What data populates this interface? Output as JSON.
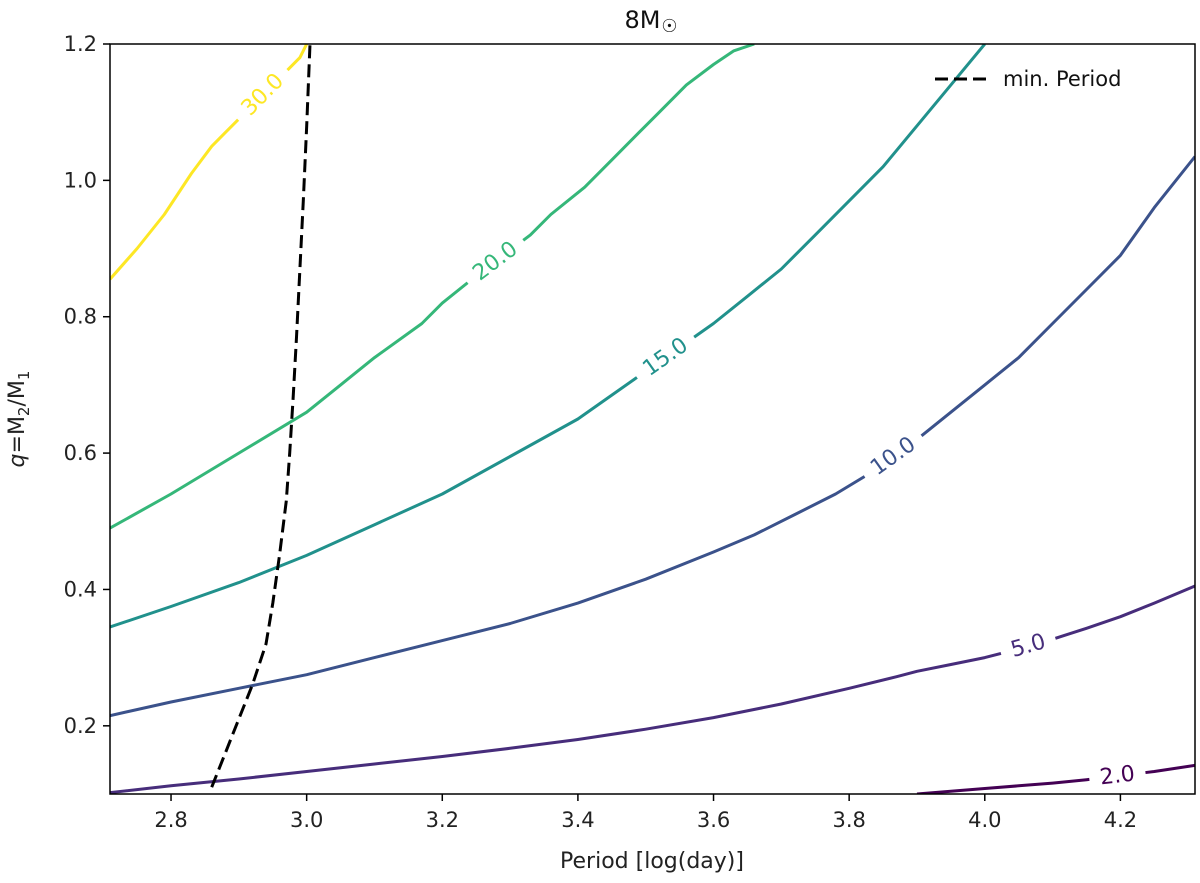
{
  "chart_data": {
    "type": "line",
    "title": "8M☉",
    "title_main": "8M",
    "title_symbol": "☉",
    "xlabel": "Period [log(day)]",
    "ylabel_parts": {
      "q": "q",
      "eq": "=M",
      "sub2": "2",
      "slash": "/M",
      "sub1": "1"
    },
    "xlim": [
      2.71,
      4.31
    ],
    "ylim": [
      0.1,
      1.2
    ],
    "xticks": [
      "2.8",
      "3.0",
      "3.2",
      "3.4",
      "3.6",
      "3.8",
      "4.0",
      "4.2"
    ],
    "yticks": [
      "0.2",
      "0.4",
      "0.6",
      "0.8",
      "1.0",
      "1.2"
    ],
    "grid": false,
    "legend": {
      "position": "top-right",
      "entries": [
        {
          "label": "min. Period",
          "style": "dashed",
          "color": "#000000"
        }
      ]
    },
    "contours": [
      {
        "level": "30.0",
        "color": "#fde725",
        "x": [
          2.71,
          2.75,
          2.79,
          2.83,
          2.86,
          2.88,
          2.9,
          2.93,
          2.96,
          2.99,
          3.0
        ],
        "y": [
          0.855,
          0.9,
          0.95,
          1.01,
          1.05,
          1.07,
          1.09,
          1.12,
          1.15,
          1.18,
          1.2
        ]
      },
      {
        "level": "20.0",
        "color": "#35b779",
        "x": [
          2.71,
          2.8,
          2.9,
          3.0,
          3.05,
          3.1,
          3.17,
          3.2,
          3.25,
          3.29,
          3.33,
          3.36,
          3.41,
          3.45,
          3.49,
          3.52,
          3.56,
          3.6,
          3.63,
          3.66
        ],
        "y": [
          0.49,
          0.54,
          0.6,
          0.66,
          0.7,
          0.74,
          0.79,
          0.82,
          0.86,
          0.89,
          0.92,
          0.95,
          0.99,
          1.03,
          1.07,
          1.1,
          1.14,
          1.17,
          1.19,
          1.2
        ]
      },
      {
        "level": "15.0",
        "color": "#21918c",
        "x": [
          2.71,
          2.8,
          2.9,
          3.0,
          3.1,
          3.2,
          3.3,
          3.4,
          3.45,
          3.5,
          3.55,
          3.6,
          3.65,
          3.7,
          3.75,
          3.8,
          3.85,
          3.9,
          3.95,
          4.0
        ],
        "y": [
          0.345,
          0.375,
          0.41,
          0.45,
          0.495,
          0.54,
          0.595,
          0.65,
          0.685,
          0.72,
          0.755,
          0.79,
          0.83,
          0.87,
          0.92,
          0.97,
          1.02,
          1.08,
          1.14,
          1.2
        ]
      },
      {
        "level": "10.0",
        "color": "#3b528b",
        "x": [
          2.71,
          2.8,
          2.9,
          3.0,
          3.1,
          3.2,
          3.3,
          3.4,
          3.5,
          3.6,
          3.66,
          3.72,
          3.78,
          3.83,
          3.9,
          3.95,
          4.0,
          4.05,
          4.1,
          4.15,
          4.2,
          4.25,
          4.31
        ],
        "y": [
          0.215,
          0.235,
          0.255,
          0.275,
          0.3,
          0.325,
          0.35,
          0.38,
          0.415,
          0.455,
          0.48,
          0.51,
          0.54,
          0.57,
          0.62,
          0.66,
          0.7,
          0.74,
          0.79,
          0.84,
          0.89,
          0.96,
          1.035
        ]
      },
      {
        "level": "5.0",
        "color": "#472d7b",
        "x": [
          2.71,
          2.8,
          2.9,
          3.0,
          3.1,
          3.2,
          3.3,
          3.4,
          3.5,
          3.6,
          3.7,
          3.8,
          3.87,
          3.9,
          3.95,
          4.0,
          4.05,
          4.1,
          4.15,
          4.2,
          4.25,
          4.31
        ],
        "y": [
          0.102,
          0.112,
          0.122,
          0.133,
          0.144,
          0.155,
          0.167,
          0.18,
          0.195,
          0.212,
          0.232,
          0.255,
          0.272,
          0.28,
          0.29,
          0.3,
          0.313,
          0.327,
          0.343,
          0.36,
          0.38,
          0.405
        ]
      },
      {
        "level": "2.0",
        "color": "#440154",
        "x": [
          3.9,
          3.95,
          4.0,
          4.05,
          4.1,
          4.15,
          4.2,
          4.25,
          4.31
        ],
        "y": [
          0.1,
          0.104,
          0.108,
          0.112,
          0.116,
          0.121,
          0.127,
          0.133,
          0.142
        ]
      }
    ],
    "min_period": {
      "name": "min. Period",
      "color": "#000000",
      "x": [
        2.86,
        2.88,
        2.9,
        2.92,
        2.94,
        2.95,
        2.96,
        2.97,
        2.975,
        2.98,
        2.985,
        2.99,
        2.995,
        3.0,
        3.005
      ],
      "y": [
        0.11,
        0.16,
        0.21,
        0.26,
        0.32,
        0.38,
        0.45,
        0.53,
        0.6,
        0.68,
        0.77,
        0.87,
        0.97,
        1.08,
        1.2
      ]
    }
  }
}
